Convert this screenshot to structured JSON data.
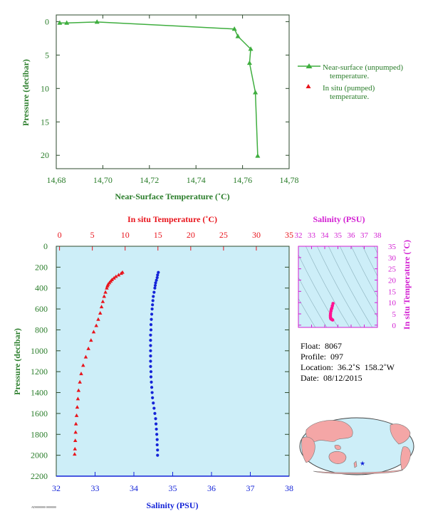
{
  "colors": {
    "green": "#3fae3f",
    "green_text": "#2a7d2a",
    "red": "#e8141c",
    "blue": "#1424d8",
    "magenta": "#d21fd2",
    "pink_curve": "#ff1493",
    "panel_bg": "#cdeef8",
    "axis_dark": "#2c4a2c"
  },
  "chart_data": [
    {
      "type": "line",
      "id": "near-surface",
      "xlabel": "Near-Surface Temperature (˚C)",
      "ylabel": "Pressure (decibar)",
      "xlim": [
        14.68,
        14.78
      ],
      "ylim": [
        22,
        -1
      ],
      "xticks": [
        "14,68",
        "14,70",
        "14,72",
        "14,74",
        "14,76",
        "14,78"
      ],
      "yticks": [
        "0",
        "5",
        "10",
        "15",
        "20"
      ],
      "series": [
        {
          "name": "Near-surface (unpumped) temperature.",
          "x": [
            14.6815,
            14.6845,
            14.6975,
            14.7565,
            14.758,
            14.7635,
            14.763,
            14.7655,
            14.7665
          ],
          "y": [
            0.2,
            0.2,
            0.05,
            1.1,
            2.2,
            4.1,
            6.2,
            10.6,
            20.1
          ]
        }
      ],
      "legend": [
        {
          "line1": "Near-surface (unpumped)",
          "line2": "temperature."
        },
        {
          "line1": "In situ (pumped)",
          "line2": "temperature."
        }
      ],
      "legend_position": "right"
    },
    {
      "type": "scatter",
      "id": "profile",
      "ylabel": "Pressure (decibar)",
      "ylim": [
        2200,
        0
      ],
      "yticks": [
        "0",
        "200",
        "400",
        "600",
        "800",
        "1000",
        "1200",
        "1400",
        "1600",
        "1800",
        "2000",
        "2200"
      ],
      "top_axis": {
        "label": "In situ Temperature (˚C)",
        "ticks": [
          "0",
          "5",
          "10",
          "15",
          "20",
          "25",
          "30",
          "35"
        ],
        "xlim": [
          -0.5,
          35
        ]
      },
      "bottom_axis": {
        "label": "Salinity (PSU)",
        "ticks": [
          "32",
          "33",
          "34",
          "35",
          "36",
          "37",
          "38"
        ],
        "xlim": [
          32,
          38
        ]
      },
      "series": [
        {
          "name": "In situ Temperature",
          "pressure": [
            250,
            260,
            275,
            290,
            305,
            320,
            335,
            350,
            365,
            380,
            400,
            440,
            480,
            530,
            580,
            640,
            700,
            760,
            820,
            900,
            980,
            1060,
            1140,
            1220,
            1300,
            1380,
            1460,
            1540,
            1620,
            1700,
            1780,
            1860,
            1940,
            1990
          ],
          "value": [
            9.6,
            9.4,
            9.0,
            8.6,
            8.3,
            8.0,
            7.8,
            7.6,
            7.4,
            7.3,
            7.2,
            7.0,
            6.8,
            6.6,
            6.4,
            6.2,
            5.9,
            5.6,
            5.2,
            4.8,
            4.4,
            4.0,
            3.6,
            3.3,
            3.1,
            2.9,
            2.8,
            2.7,
            2.6,
            2.5,
            2.45,
            2.4,
            2.35,
            2.3
          ]
        },
        {
          "name": "Salinity",
          "pressure": [
            250,
            275,
            300,
            325,
            350,
            375,
            400,
            440,
            480,
            520,
            560,
            600,
            650,
            700,
            750,
            800,
            850,
            900,
            950,
            1000,
            1050,
            1100,
            1150,
            1200,
            1250,
            1300,
            1350,
            1400,
            1450,
            1500,
            1550,
            1600,
            1650,
            1700,
            1750,
            1800,
            1850,
            1900,
            1950,
            2000
          ],
          "value": [
            34.63,
            34.61,
            34.6,
            34.58,
            34.56,
            34.55,
            34.54,
            34.52,
            34.5,
            34.49,
            34.48,
            34.47,
            34.46,
            34.45,
            34.44,
            34.44,
            34.43,
            34.43,
            34.43,
            34.43,
            34.43,
            34.43,
            34.43,
            34.44,
            34.44,
            34.45,
            34.46,
            34.47,
            34.48,
            34.5,
            34.52,
            34.54,
            34.56,
            34.57,
            34.58,
            34.59,
            34.6,
            34.6,
            34.61,
            34.61
          ]
        }
      ]
    },
    {
      "type": "scatter",
      "id": "ts-diagram",
      "top_axis": {
        "label": "Salinity (PSU)",
        "ticks": [
          "32",
          "33",
          "34",
          "35",
          "36",
          "37",
          "38"
        ],
        "xlim": [
          32,
          38
        ]
      },
      "right_axis": {
        "label": "In situ Temperature (˚C)",
        "ticks": [
          "0",
          "5",
          "10",
          "15",
          "20",
          "25",
          "30",
          "35"
        ],
        "ylim": [
          -1,
          35
        ]
      },
      "series": [
        {
          "name": "T-S",
          "salinity": [
            34.63,
            34.58,
            34.54,
            34.5,
            34.47,
            34.44,
            34.43,
            34.43,
            34.45,
            34.48,
            34.54,
            34.6
          ],
          "temperature": [
            9.6,
            8.6,
            7.6,
            7.0,
            6.2,
            5.2,
            4.4,
            3.6,
            3.0,
            2.7,
            2.5,
            2.3
          ]
        }
      ]
    }
  ],
  "float_info": {
    "float": "Float:  8067",
    "profile": "Profile:  097",
    "location": "Location:  36.2˚S  158.2˚W",
    "date": "Date:  08/12/2015"
  },
  "map": {
    "marker": "float-position"
  },
  "footer_code": "AD0000000  0000000"
}
